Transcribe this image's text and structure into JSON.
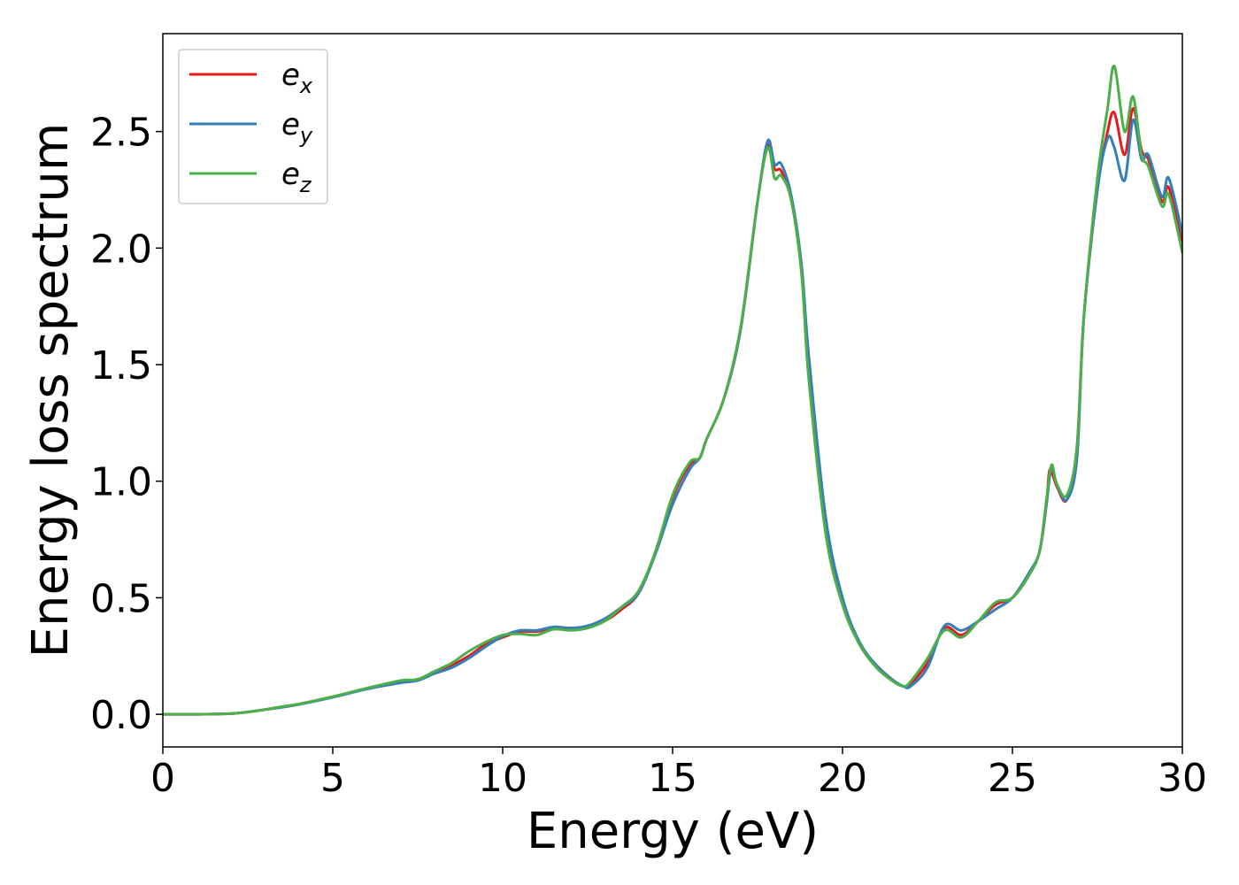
{
  "chart_data": {
    "type": "line",
    "title": "",
    "xlabel": "Energy (eV)",
    "ylabel": "Energy loss spectrum",
    "xlim": [
      0,
      30
    ],
    "ylim": [
      -0.14,
      2.92
    ],
    "xticks": [
      0,
      5,
      10,
      15,
      20,
      25,
      30
    ],
    "xtick_labels": [
      "0",
      "5",
      "10",
      "15",
      "20",
      "25",
      "30"
    ],
    "yticks": [
      0.0,
      0.5,
      1.0,
      1.5,
      2.0,
      2.5
    ],
    "ytick_labels": [
      "0.0",
      "0.5",
      "1.0",
      "1.5",
      "2.0",
      "2.5"
    ],
    "grid": false,
    "legend_position": "top-left",
    "series": [
      {
        "name": "x",
        "color": "#e41a1c",
        "points": [
          [
            0,
            0.0
          ],
          [
            1,
            0.0
          ],
          [
            2,
            0.003
          ],
          [
            2.5,
            0.01
          ],
          [
            3,
            0.02
          ],
          [
            3.5,
            0.032
          ],
          [
            4,
            0.043
          ],
          [
            5,
            0.075
          ],
          [
            6,
            0.11
          ],
          [
            7,
            0.14
          ],
          [
            7.5,
            0.15
          ],
          [
            8,
            0.18
          ],
          [
            8.5,
            0.21
          ],
          [
            9,
            0.25
          ],
          [
            9.5,
            0.3
          ],
          [
            10,
            0.33
          ],
          [
            10.5,
            0.355
          ],
          [
            11,
            0.355
          ],
          [
            11.5,
            0.37
          ],
          [
            12,
            0.37
          ],
          [
            12.5,
            0.375
          ],
          [
            13,
            0.4
          ],
          [
            13.5,
            0.45
          ],
          [
            14,
            0.52
          ],
          [
            14.5,
            0.7
          ],
          [
            15,
            0.93
          ],
          [
            15.5,
            1.07
          ],
          [
            15.8,
            1.1
          ],
          [
            16,
            1.18
          ],
          [
            16.5,
            1.35
          ],
          [
            17,
            1.65
          ],
          [
            17.5,
            2.2
          ],
          [
            17.8,
            2.44
          ],
          [
            18,
            2.34
          ],
          [
            18.2,
            2.33
          ],
          [
            18.5,
            2.2
          ],
          [
            18.8,
            1.9
          ],
          [
            19,
            1.5
          ],
          [
            19.5,
            0.8
          ],
          [
            20,
            0.48
          ],
          [
            20.5,
            0.3
          ],
          [
            21,
            0.21
          ],
          [
            21.5,
            0.145
          ],
          [
            21.8,
            0.12
          ],
          [
            22,
            0.13
          ],
          [
            22.5,
            0.22
          ],
          [
            23,
            0.37
          ],
          [
            23.5,
            0.34
          ],
          [
            24,
            0.4
          ],
          [
            24.5,
            0.47
          ],
          [
            25,
            0.5
          ],
          [
            25.5,
            0.6
          ],
          [
            25.8,
            0.7
          ],
          [
            26,
            0.9
          ],
          [
            26.1,
            1.05
          ],
          [
            26.3,
            0.98
          ],
          [
            26.6,
            0.92
          ],
          [
            26.9,
            1.15
          ],
          [
            27.1,
            1.7
          ],
          [
            27.5,
            2.25
          ],
          [
            27.8,
            2.5
          ],
          [
            28,
            2.58
          ],
          [
            28.3,
            2.4
          ],
          [
            28.55,
            2.6
          ],
          [
            28.8,
            2.42
          ],
          [
            29,
            2.38
          ],
          [
            29.4,
            2.2
          ],
          [
            29.6,
            2.26
          ],
          [
            30,
            2.03
          ]
        ]
      },
      {
        "name": "y",
        "color": "#377eb8",
        "points": [
          [
            0,
            0.0
          ],
          [
            1,
            0.0
          ],
          [
            2,
            0.003
          ],
          [
            2.5,
            0.01
          ],
          [
            3,
            0.02
          ],
          [
            3.5,
            0.03
          ],
          [
            4,
            0.042
          ],
          [
            5,
            0.073
          ],
          [
            6,
            0.108
          ],
          [
            7,
            0.135
          ],
          [
            7.5,
            0.145
          ],
          [
            8,
            0.175
          ],
          [
            8.5,
            0.2
          ],
          [
            9,
            0.24
          ],
          [
            9.5,
            0.29
          ],
          [
            10,
            0.335
          ],
          [
            10.5,
            0.36
          ],
          [
            11,
            0.36
          ],
          [
            11.5,
            0.375
          ],
          [
            12,
            0.37
          ],
          [
            12.5,
            0.38
          ],
          [
            13,
            0.41
          ],
          [
            13.5,
            0.46
          ],
          [
            14,
            0.52
          ],
          [
            14.5,
            0.69
          ],
          [
            15,
            0.9
          ],
          [
            15.5,
            1.05
          ],
          [
            15.8,
            1.1
          ],
          [
            16,
            1.18
          ],
          [
            16.5,
            1.35
          ],
          [
            17,
            1.65
          ],
          [
            17.5,
            2.2
          ],
          [
            17.8,
            2.46
          ],
          [
            18,
            2.36
          ],
          [
            18.2,
            2.36
          ],
          [
            18.5,
            2.22
          ],
          [
            18.8,
            1.92
          ],
          [
            19,
            1.55
          ],
          [
            19.5,
            0.85
          ],
          [
            20,
            0.5
          ],
          [
            20.5,
            0.31
          ],
          [
            21,
            0.21
          ],
          [
            21.5,
            0.145
          ],
          [
            21.8,
            0.12
          ],
          [
            22,
            0.12
          ],
          [
            22.5,
            0.2
          ],
          [
            23,
            0.38
          ],
          [
            23.5,
            0.36
          ],
          [
            24,
            0.4
          ],
          [
            24.5,
            0.45
          ],
          [
            25,
            0.5
          ],
          [
            25.5,
            0.61
          ],
          [
            25.8,
            0.7
          ],
          [
            26,
            0.9
          ],
          [
            26.15,
            1.06
          ],
          [
            26.3,
            0.99
          ],
          [
            26.6,
            0.92
          ],
          [
            26.9,
            1.1
          ],
          [
            27.1,
            1.7
          ],
          [
            27.5,
            2.25
          ],
          [
            27.8,
            2.47
          ],
          [
            28,
            2.43
          ],
          [
            28.3,
            2.29
          ],
          [
            28.55,
            2.55
          ],
          [
            28.8,
            2.38
          ],
          [
            29,
            2.4
          ],
          [
            29.4,
            2.22
          ],
          [
            29.6,
            2.3
          ],
          [
            30,
            2.06
          ]
        ]
      },
      {
        "name": "z",
        "color": "#4daf4a",
        "points": [
          [
            0,
            0.0
          ],
          [
            1,
            0.0
          ],
          [
            2,
            0.003
          ],
          [
            2.5,
            0.01
          ],
          [
            3,
            0.02
          ],
          [
            3.5,
            0.033
          ],
          [
            4,
            0.044
          ],
          [
            5,
            0.076
          ],
          [
            6,
            0.112
          ],
          [
            7,
            0.145
          ],
          [
            7.5,
            0.15
          ],
          [
            8,
            0.185
          ],
          [
            8.5,
            0.22
          ],
          [
            9,
            0.27
          ],
          [
            9.5,
            0.31
          ],
          [
            10,
            0.34
          ],
          [
            10.5,
            0.345
          ],
          [
            11,
            0.34
          ],
          [
            11.5,
            0.365
          ],
          [
            12,
            0.36
          ],
          [
            12.5,
            0.37
          ],
          [
            13,
            0.4
          ],
          [
            13.5,
            0.46
          ],
          [
            14,
            0.53
          ],
          [
            14.5,
            0.7
          ],
          [
            15,
            0.94
          ],
          [
            15.5,
            1.08
          ],
          [
            15.8,
            1.1
          ],
          [
            16,
            1.18
          ],
          [
            16.5,
            1.35
          ],
          [
            17,
            1.66
          ],
          [
            17.5,
            2.2
          ],
          [
            17.8,
            2.43
          ],
          [
            18,
            2.3
          ],
          [
            18.2,
            2.31
          ],
          [
            18.5,
            2.2
          ],
          [
            18.8,
            1.88
          ],
          [
            19,
            1.45
          ],
          [
            19.5,
            0.78
          ],
          [
            20,
            0.47
          ],
          [
            20.5,
            0.3
          ],
          [
            21,
            0.2
          ],
          [
            21.5,
            0.14
          ],
          [
            21.8,
            0.12
          ],
          [
            22,
            0.14
          ],
          [
            22.5,
            0.24
          ],
          [
            23,
            0.36
          ],
          [
            23.5,
            0.33
          ],
          [
            24,
            0.4
          ],
          [
            24.5,
            0.48
          ],
          [
            25,
            0.5
          ],
          [
            25.5,
            0.6
          ],
          [
            25.8,
            0.7
          ],
          [
            26,
            0.92
          ],
          [
            26.15,
            1.07
          ],
          [
            26.3,
            0.99
          ],
          [
            26.6,
            0.94
          ],
          [
            26.9,
            1.15
          ],
          [
            27.1,
            1.7
          ],
          [
            27.5,
            2.3
          ],
          [
            27.8,
            2.6
          ],
          [
            28,
            2.78
          ],
          [
            28.3,
            2.5
          ],
          [
            28.55,
            2.65
          ],
          [
            28.8,
            2.4
          ],
          [
            29,
            2.35
          ],
          [
            29.4,
            2.18
          ],
          [
            29.6,
            2.23
          ],
          [
            30,
            1.98
          ]
        ]
      }
    ]
  }
}
